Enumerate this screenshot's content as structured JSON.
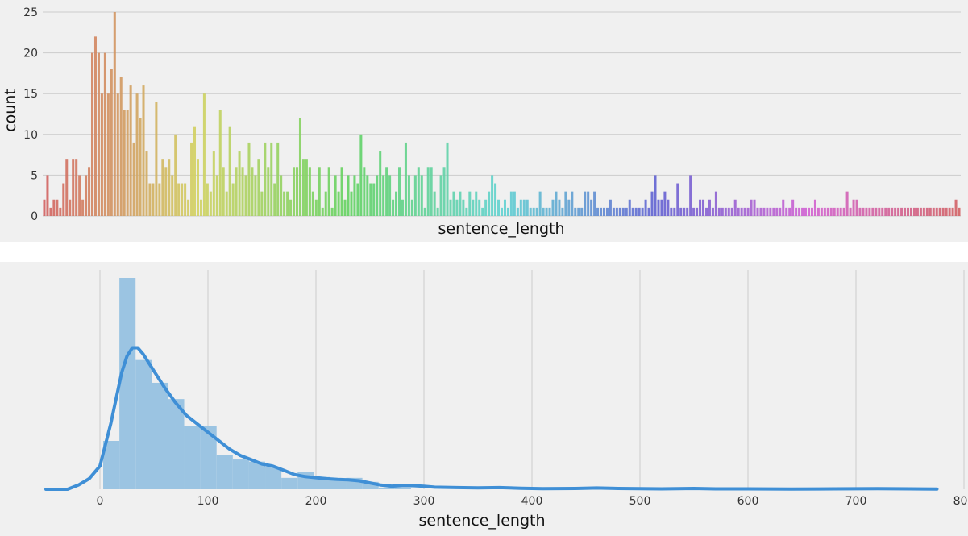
{
  "chart_data": [
    {
      "type": "bar",
      "xlabel": "sentence_length",
      "ylabel": "count",
      "ylim": [
        0,
        25
      ],
      "yticks": [
        "0",
        "5",
        "10",
        "15",
        "20",
        "25"
      ],
      "grid": "horizontal",
      "legend": "none",
      "palette": "husl gradient (pink → orange → olive → green → teal → blue → purple → pink)",
      "values": [
        2,
        5,
        1,
        2,
        2,
        1,
        4,
        7,
        2,
        7,
        7,
        5,
        2,
        5,
        6,
        20,
        22,
        20,
        15,
        20,
        15,
        18,
        25,
        15,
        17,
        13,
        13,
        16,
        9,
        15,
        12,
        16,
        8,
        4,
        4,
        14,
        4,
        7,
        6,
        7,
        5,
        10,
        4,
        4,
        4,
        2,
        9,
        11,
        7,
        2,
        15,
        4,
        3,
        8,
        5,
        13,
        6,
        3,
        11,
        4,
        6,
        8,
        6,
        5,
        9,
        6,
        5,
        7,
        3,
        9,
        6,
        9,
        4,
        9,
        5,
        3,
        3,
        2,
        6,
        6,
        12,
        7,
        7,
        6,
        3,
        2,
        6,
        1,
        3,
        6,
        1,
        5,
        3,
        6,
        2,
        5,
        3,
        5,
        4,
        10,
        6,
        5,
        4,
        4,
        5,
        8,
        5,
        6,
        5,
        2,
        3,
        6,
        2,
        9,
        5,
        2,
        5,
        6,
        5,
        1,
        6,
        6,
        3,
        1,
        5,
        6,
        9,
        2,
        3,
        2,
        3,
        2,
        1,
        3,
        2,
        3,
        2,
        1,
        2,
        3,
        5,
        4,
        2,
        1,
        2,
        1,
        3,
        3,
        1,
        2,
        2,
        2,
        1,
        1,
        1,
        3,
        1,
        1,
        1,
        2,
        3,
        2,
        1,
        3,
        2,
        3,
        1,
        1,
        1,
        3,
        3,
        2,
        3,
        1,
        1,
        1,
        1,
        2,
        1,
        1,
        1,
        1,
        1,
        2,
        1,
        1,
        1,
        1,
        2,
        1,
        3,
        5,
        2,
        2,
        3,
        2,
        1,
        1,
        4,
        1,
        1,
        1,
        5,
        1,
        1,
        2,
        2,
        1,
        2,
        1,
        3,
        1,
        1,
        1,
        1,
        1,
        2,
        1,
        1,
        1,
        1,
        2,
        2,
        1,
        1,
        1,
        1,
        1,
        1,
        1,
        1,
        2,
        1,
        1,
        2,
        1,
        1,
        1,
        1,
        1,
        1,
        2,
        1,
        1,
        1,
        1,
        1,
        1,
        1,
        1,
        1,
        3,
        1,
        2,
        2,
        1,
        1,
        1,
        1,
        1,
        1,
        1,
        1,
        1,
        1,
        1,
        1,
        1,
        1,
        1,
        1,
        1,
        1,
        1,
        1,
        1,
        1,
        1,
        1,
        1,
        1,
        1,
        1,
        1,
        1,
        2,
        1
      ]
    },
    {
      "type": "histogram",
      "subtype": "histogram with KDE line",
      "xlabel": "sentence_length",
      "xlim": [
        -50,
        800
      ],
      "xticks": [
        "0",
        "100",
        "200",
        "300",
        "400",
        "500",
        "600",
        "700",
        "800"
      ],
      "grid": "vertical",
      "legend": "none",
      "bar_color": "#9bc4e2",
      "line_color": "#3f8fd6",
      "bins": [
        {
          "x0": 3,
          "x1": 18,
          "height": 0.229
        },
        {
          "x0": 18,
          "x1": 33,
          "height": 1.0
        },
        {
          "x0": 33,
          "x1": 48,
          "height": 0.612
        },
        {
          "x0": 48,
          "x1": 63,
          "height": 0.504
        },
        {
          "x0": 63,
          "x1": 78,
          "height": 0.427
        },
        {
          "x0": 78,
          "x1": 93,
          "height": 0.299
        },
        {
          "x0": 93,
          "x1": 108,
          "height": 0.299
        },
        {
          "x0": 108,
          "x1": 123,
          "height": 0.164
        },
        {
          "x0": 123,
          "x1": 138,
          "height": 0.141
        },
        {
          "x0": 138,
          "x1": 153,
          "height": 0.131
        },
        {
          "x0": 153,
          "x1": 168,
          "height": 0.104
        },
        {
          "x0": 168,
          "x1": 183,
          "height": 0.054
        },
        {
          "x0": 183,
          "x1": 198,
          "height": 0.081
        },
        {
          "x0": 198,
          "x1": 213,
          "height": 0.058
        },
        {
          "x0": 213,
          "x1": 228,
          "height": 0.042
        },
        {
          "x0": 228,
          "x1": 243,
          "height": 0.054
        },
        {
          "x0": 243,
          "x1": 258,
          "height": 0.035
        },
        {
          "x0": 258,
          "x1": 273,
          "height": 0.008
        },
        {
          "x0": 273,
          "x1": 288,
          "height": 0.004
        }
      ],
      "kde": [
        [
          -50,
          0.0
        ],
        [
          -30,
          0.0
        ],
        [
          -20,
          0.02
        ],
        [
          -10,
          0.05
        ],
        [
          0,
          0.11
        ],
        [
          10,
          0.31
        ],
        [
          20,
          0.55
        ],
        [
          25,
          0.63
        ],
        [
          30,
          0.67
        ],
        [
          35,
          0.67
        ],
        [
          40,
          0.64
        ],
        [
          50,
          0.56
        ],
        [
          60,
          0.48
        ],
        [
          70,
          0.41
        ],
        [
          80,
          0.35
        ],
        [
          90,
          0.31
        ],
        [
          100,
          0.27
        ],
        [
          110,
          0.23
        ],
        [
          120,
          0.19
        ],
        [
          130,
          0.16
        ],
        [
          140,
          0.14
        ],
        [
          150,
          0.12
        ],
        [
          160,
          0.11
        ],
        [
          170,
          0.09
        ],
        [
          180,
          0.07
        ],
        [
          190,
          0.06
        ],
        [
          200,
          0.055
        ],
        [
          210,
          0.05
        ],
        [
          220,
          0.047
        ],
        [
          230,
          0.045
        ],
        [
          240,
          0.04
        ],
        [
          250,
          0.03
        ],
        [
          260,
          0.02
        ],
        [
          270,
          0.015
        ],
        [
          280,
          0.017
        ],
        [
          290,
          0.017
        ],
        [
          300,
          0.014
        ],
        [
          310,
          0.01
        ],
        [
          330,
          0.008
        ],
        [
          350,
          0.007
        ],
        [
          370,
          0.008
        ],
        [
          390,
          0.005
        ],
        [
          410,
          0.003
        ],
        [
          440,
          0.004
        ],
        [
          460,
          0.006
        ],
        [
          480,
          0.004
        ],
        [
          500,
          0.003
        ],
        [
          520,
          0.002
        ],
        [
          550,
          0.004
        ],
        [
          570,
          0.002
        ],
        [
          600,
          0.002
        ],
        [
          640,
          0.001
        ],
        [
          680,
          0.002
        ],
        [
          720,
          0.003
        ],
        [
          750,
          0.002
        ],
        [
          775,
          0.001
        ]
      ]
    }
  ]
}
